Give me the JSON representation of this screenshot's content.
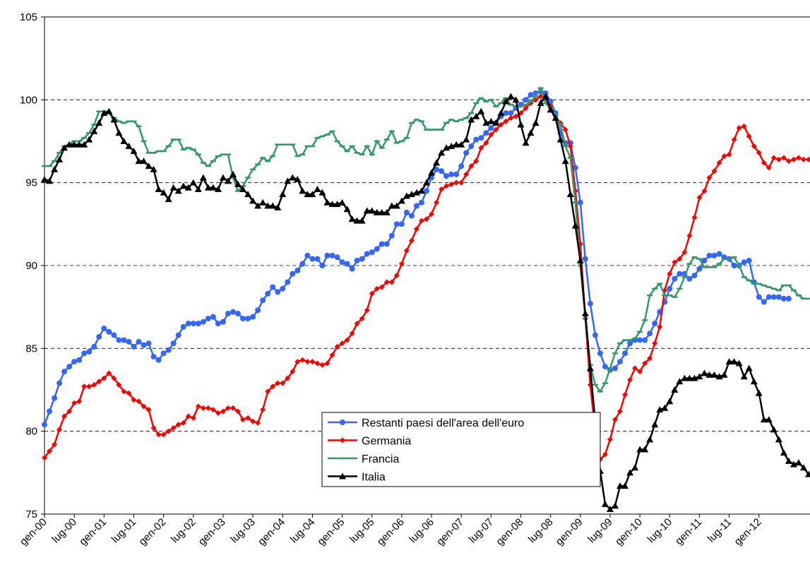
{
  "chart_data": {
    "type": "line",
    "categories": [
      "gen-00",
      null,
      null,
      null,
      null,
      null,
      "lug-00",
      null,
      null,
      null,
      null,
      null,
      "gen-01",
      null,
      null,
      null,
      null,
      null,
      "lug-01",
      null,
      null,
      null,
      null,
      null,
      "gen-02",
      null,
      null,
      null,
      null,
      null,
      "lug-02",
      null,
      null,
      null,
      null,
      null,
      "gen-03",
      null,
      null,
      null,
      null,
      null,
      "lug-03",
      null,
      null,
      null,
      null,
      null,
      "gen-04",
      null,
      null,
      null,
      null,
      null,
      "lug-04",
      null,
      null,
      null,
      null,
      null,
      "gen-05",
      null,
      null,
      null,
      null,
      null,
      "lug-05",
      null,
      null,
      null,
      null,
      null,
      "gen-06",
      null,
      null,
      null,
      null,
      null,
      "lug-06",
      null,
      null,
      null,
      null,
      null,
      "gen-07",
      null,
      null,
      null,
      null,
      null,
      "lug-07",
      null,
      null,
      null,
      null,
      null,
      "gen-08",
      null,
      null,
      null,
      null,
      null,
      "lug-08",
      null,
      null,
      null,
      null,
      null,
      "gen-09",
      null,
      null,
      null,
      null,
      null,
      "lug-09",
      null,
      null,
      null,
      null,
      null,
      "gen-10",
      null,
      null,
      null,
      null,
      null,
      "lug-10",
      null,
      null,
      null,
      null,
      null,
      "gen-11",
      null,
      null,
      null,
      null,
      null,
      "lug-11",
      null,
      null,
      null,
      null,
      null,
      "gen-12",
      null,
      null,
      null,
      null,
      null,
      null,
      null,
      null,
      null,
      null
    ],
    "ylim": [
      75,
      105
    ],
    "yticks": [
      75,
      80,
      85,
      90,
      95,
      100,
      105
    ],
    "grid": true,
    "series": [
      {
        "name": "Restanti paesi dell'area dell'euro",
        "color": "#3366ff",
        "marker": "circle",
        "values": [
          80.4,
          81.2,
          82.0,
          82.9,
          83.6,
          83.9,
          84.2,
          84.3,
          84.7,
          84.8,
          85.1,
          85.7,
          86.2,
          86.0,
          85.8,
          85.5,
          85.5,
          85.4,
          85.1,
          85.4,
          85.2,
          85.3,
          84.5,
          84.3,
          84.7,
          84.9,
          85.3,
          85.8,
          86.3,
          86.5,
          86.5,
          86.5,
          86.6,
          86.8,
          86.9,
          86.5,
          86.6,
          87.1,
          87.2,
          87.1,
          86.8,
          86.8,
          86.9,
          87.3,
          87.9,
          88.3,
          88.7,
          88.4,
          88.6,
          89.0,
          89.5,
          89.7,
          90.1,
          90.6,
          90.4,
          90.4,
          90.0,
          90.6,
          90.6,
          90.5,
          90.2,
          90.1,
          89.8,
          90.3,
          90.4,
          90.7,
          90.8,
          91.0,
          91.3,
          91.3,
          91.8,
          92.5,
          92.5,
          93.2,
          93.0,
          93.6,
          93.8,
          94.5,
          95.3,
          95.8,
          95.7,
          95.4,
          95.5,
          95.5,
          96.0,
          96.8,
          97.2,
          97.6,
          97.7,
          98.0,
          98.3,
          98.6,
          99.0,
          99.2,
          99.2,
          99.5,
          99.7,
          100.0,
          100.3,
          100.4,
          100.5,
          100.4,
          99.9,
          99.2,
          98.0,
          97.4,
          97.4,
          95.9,
          93.8,
          90.4,
          87.7,
          85.8,
          84.7,
          83.9,
          83.7,
          83.8,
          84.2,
          84.7,
          85.3,
          85.5,
          85.5,
          85.5,
          85.9,
          86.5,
          87.2,
          87.8,
          88.6,
          89.2,
          89.5,
          89.5,
          89.2,
          89.4,
          89.8,
          90.3,
          90.6,
          90.6,
          90.7,
          90.5,
          90.4,
          90.0,
          90.0,
          90.2,
          90.3,
          89.0,
          88.1,
          87.8,
          88.1,
          88.1,
          88.1,
          88.0,
          88.0,
          null,
          null,
          null,
          null
        ]
      },
      {
        "name": "Germania",
        "color": "#ff0000",
        "marker": "diamond",
        "values": [
          78.4,
          78.8,
          79.2,
          80.1,
          80.9,
          81.2,
          81.7,
          81.8,
          82.7,
          82.7,
          82.8,
          83.0,
          83.2,
          83.5,
          83.2,
          82.8,
          82.4,
          82.3,
          81.9,
          81.8,
          81.5,
          81.3,
          80.2,
          79.8,
          79.8,
          80.0,
          80.2,
          80.4,
          80.5,
          80.9,
          80.8,
          81.5,
          81.4,
          81.4,
          81.3,
          81.1,
          81.2,
          81.4,
          81.4,
          81.2,
          80.7,
          80.8,
          80.6,
          80.5,
          81.3,
          82.4,
          82.7,
          82.9,
          82.9,
          83.2,
          83.6,
          84.2,
          84.3,
          84.2,
          84.2,
          84.1,
          84.0,
          84.1,
          84.6,
          85.1,
          85.3,
          85.5,
          85.9,
          86.5,
          86.8,
          87.3,
          88.3,
          88.6,
          88.7,
          89.0,
          89.0,
          89.4,
          90.1,
          90.9,
          91.5,
          92.2,
          92.7,
          92.8,
          93.1,
          93.8,
          94.6,
          94.8,
          94.9,
          95.0,
          95.0,
          95.5,
          96.0,
          96.3,
          97.1,
          97.4,
          97.9,
          98.2,
          98.5,
          98.7,
          98.9,
          99.0,
          99.2,
          99.5,
          99.8,
          100.0,
          100.2,
          100.1,
          99.6,
          99.0,
          98.6,
          98.2,
          97.2,
          94.5,
          91.3,
          86.8,
          82.8,
          80.0,
          78.3,
          78.6,
          79.5,
          80.7,
          81.2,
          82.2,
          83.1,
          83.8,
          83.6,
          84.1,
          84.4,
          85.3,
          86.3,
          88.5,
          89.5,
          90.2,
          90.4,
          90.8,
          91.8,
          92.9,
          94.1,
          94.5,
          95.3,
          95.7,
          96.2,
          96.6,
          96.7,
          97.6,
          98.3,
          98.4,
          97.8,
          97.2,
          96.8,
          96.2,
          95.9,
          96.5,
          96.4,
          96.5,
          96.3,
          96.4,
          96.5,
          96.4,
          96.4
        ]
      },
      {
        "name": "Francia",
        "color": "#339966",
        "marker": "dash",
        "values": [
          96.0,
          96.0,
          96.3,
          96.8,
          97.2,
          97.3,
          97.5,
          97.5,
          97.7,
          98.0,
          98.5,
          99.3,
          99.3,
          99.2,
          98.9,
          98.7,
          98.6,
          98.7,
          98.7,
          98.4,
          97.5,
          96.8,
          96.8,
          96.9,
          96.9,
          97.2,
          97.6,
          97.6,
          97.0,
          97.1,
          97.0,
          96.7,
          96.2,
          96.0,
          96.3,
          96.6,
          96.7,
          96.7,
          95.3,
          94.5,
          94.8,
          95.3,
          95.8,
          96.1,
          96.5,
          96.3,
          96.6,
          97.3,
          97.3,
          97.3,
          97.3,
          96.6,
          96.7,
          97.2,
          97.2,
          97.7,
          97.8,
          97.9,
          98.1,
          97.5,
          97.2,
          96.9,
          97.2,
          96.8,
          96.7,
          97.2,
          96.7,
          97.5,
          97.1,
          97.6,
          98.1,
          97.4,
          97.5,
          97.7,
          98.6,
          98.8,
          98.7,
          98.2,
          98.2,
          98.2,
          98.2,
          98.6,
          98.8,
          98.7,
          98.8,
          98.9,
          99.2,
          99.8,
          100.1,
          99.9,
          100.0,
          99.6,
          99.8,
          100.1,
          99.7,
          99.6,
          99.6,
          99.7,
          99.9,
          100.2,
          100.7,
          99.8,
          99.5,
          99.1,
          98.5,
          97.2,
          96.5,
          93.8,
          90.0,
          86.8,
          84.0,
          82.8,
          82.4,
          82.9,
          83.8,
          84.7,
          85.3,
          85.5,
          85.5,
          85.6,
          86.0,
          86.7,
          88.2,
          88.6,
          88.9,
          88.2,
          88.2,
          88.1,
          88.6,
          89.3,
          90.1,
          90.5,
          90.4,
          89.9,
          89.9,
          89.9,
          90.1,
          90.4,
          90.4,
          90.5,
          90.0,
          89.3,
          89.1,
          88.9,
          88.9,
          88.8,
          88.7,
          88.6,
          88.5,
          88.8,
          88.8,
          88.5,
          88.2,
          88.0,
          88.0
        ]
      },
      {
        "name": "Italia",
        "color": "#000000",
        "marker": "triangle",
        "values": [
          95.2,
          95.1,
          95.8,
          96.4,
          97.1,
          97.3,
          97.3,
          97.3,
          97.3,
          97.6,
          98.1,
          98.6,
          99.2,
          99.3,
          98.8,
          98.0,
          97.5,
          97.2,
          96.9,
          96.3,
          96.3,
          96.0,
          95.8,
          94.6,
          94.4,
          94.0,
          94.7,
          94.5,
          94.8,
          94.7,
          95.0,
          94.6,
          95.3,
          94.7,
          94.7,
          94.6,
          95.3,
          95.1,
          95.5,
          94.9,
          94.6,
          94.3,
          93.9,
          93.6,
          93.8,
          93.6,
          93.6,
          93.5,
          94.3,
          95.1,
          95.3,
          95.2,
          94.5,
          94.3,
          94.3,
          94.6,
          94.4,
          93.8,
          93.7,
          93.7,
          93.8,
          93.4,
          92.8,
          92.7,
          92.7,
          93.3,
          93.3,
          93.2,
          93.2,
          93.2,
          93.6,
          93.6,
          93.9,
          94.2,
          94.3,
          94.4,
          94.5,
          95.0,
          95.6,
          96.2,
          96.8,
          97.1,
          97.2,
          97.3,
          97.3,
          97.6,
          98.8,
          99.0,
          99.3,
          98.6,
          98.7,
          98.6,
          99.2,
          99.9,
          100.2,
          100.0,
          98.5,
          97.4,
          98.0,
          98.6,
          99.8,
          100.2,
          99.4,
          98.9,
          97.6,
          96.3,
          94.3,
          92.4,
          90.3,
          87.1,
          83.8,
          80.6,
          77.6,
          75.6,
          75.3,
          75.5,
          76.7,
          76.7,
          77.5,
          77.8,
          78.9,
          78.9,
          79.5,
          80.4,
          81.3,
          81.4,
          81.8,
          82.5,
          83.0,
          83.2,
          83.2,
          83.2,
          83.3,
          83.5,
          83.4,
          83.4,
          83.3,
          83.4,
          84.2,
          84.2,
          84.1,
          83.3,
          83.8,
          83.0,
          82.3,
          80.7,
          80.7,
          80.1,
          79.5,
          78.7,
          78.2,
          78.0,
          78.1,
          77.8,
          77.4
        ]
      }
    ]
  }
}
